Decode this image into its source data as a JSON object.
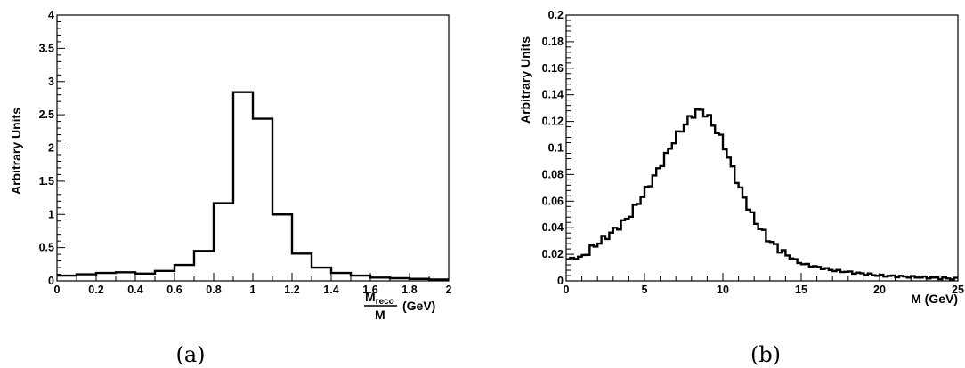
{
  "chart_data": [
    {
      "type": "histogram",
      "caption": "(a)",
      "ylabel": "Arbitrary Units",
      "xlabel": {
        "numerator_main": "M",
        "numerator_sub": "reco",
        "denominator": "M",
        "unit": "(GeV)"
      },
      "xlim": [
        0,
        2
      ],
      "ylim": [
        0,
        4
      ],
      "x_ticks": [
        0,
        0.2,
        0.4,
        0.6,
        0.8,
        1,
        1.2,
        1.4,
        1.6,
        1.8,
        2
      ],
      "x_tick_labels": [
        "0",
        "0.2",
        "0.4",
        "0.6",
        "0.8",
        "1",
        "1.2",
        "1.4",
        "1.6",
        "1.8",
        "2"
      ],
      "y_ticks": [
        0,
        0.5,
        1,
        1.5,
        2,
        2.5,
        3,
        3.5,
        4
      ],
      "y_tick_labels": [
        "0",
        "0.5",
        "1",
        "1.5",
        "2",
        "2.5",
        "3",
        "3.5",
        "4"
      ],
      "bin_edges": [
        0,
        0.1,
        0.2,
        0.3,
        0.4,
        0.5,
        0.6,
        0.7,
        0.8,
        0.9,
        1.0,
        1.1,
        1.2,
        1.3,
        1.4,
        1.5,
        1.6,
        1.7,
        1.8,
        1.9,
        2.0
      ],
      "values": [
        0.08,
        0.1,
        0.12,
        0.13,
        0.11,
        0.15,
        0.24,
        0.45,
        1.17,
        2.84,
        2.44,
        1.0,
        0.41,
        0.2,
        0.12,
        0.08,
        0.05,
        0.04,
        0.03,
        0.02
      ],
      "grid": false
    },
    {
      "type": "histogram",
      "caption": "(b)",
      "ylabel": "Arbitrary Units",
      "xlabel": "M (GeV)",
      "xlim": [
        0,
        25
      ],
      "ylim": [
        0,
        0.2
      ],
      "x_ticks": [
        0,
        5,
        10,
        15,
        20,
        25
      ],
      "x_tick_labels": [
        "0",
        "5",
        "10",
        "15",
        "20",
        "25"
      ],
      "y_ticks": [
        0,
        0.02,
        0.04,
        0.06,
        0.08,
        0.1,
        0.12,
        0.14,
        0.16,
        0.18,
        0.2
      ],
      "y_tick_labels": [
        "0",
        "0.02",
        "0.04",
        "0.06",
        "0.08",
        "0.1",
        "0.12",
        "0.14",
        "0.16",
        "0.18",
        "0.2"
      ],
      "bin_width": 0.25,
      "anchor_x": [
        0,
        1,
        2,
        3,
        4,
        5,
        6,
        7,
        8,
        8.5,
        9,
        10,
        11,
        12,
        13,
        14,
        15,
        17,
        20,
        25
      ],
      "anchor_y": [
        0.016,
        0.018,
        0.028,
        0.037,
        0.048,
        0.066,
        0.086,
        0.108,
        0.124,
        0.129,
        0.125,
        0.105,
        0.072,
        0.046,
        0.03,
        0.02,
        0.013,
        0.008,
        0.004,
        0.0015
      ],
      "grid": false
    }
  ]
}
